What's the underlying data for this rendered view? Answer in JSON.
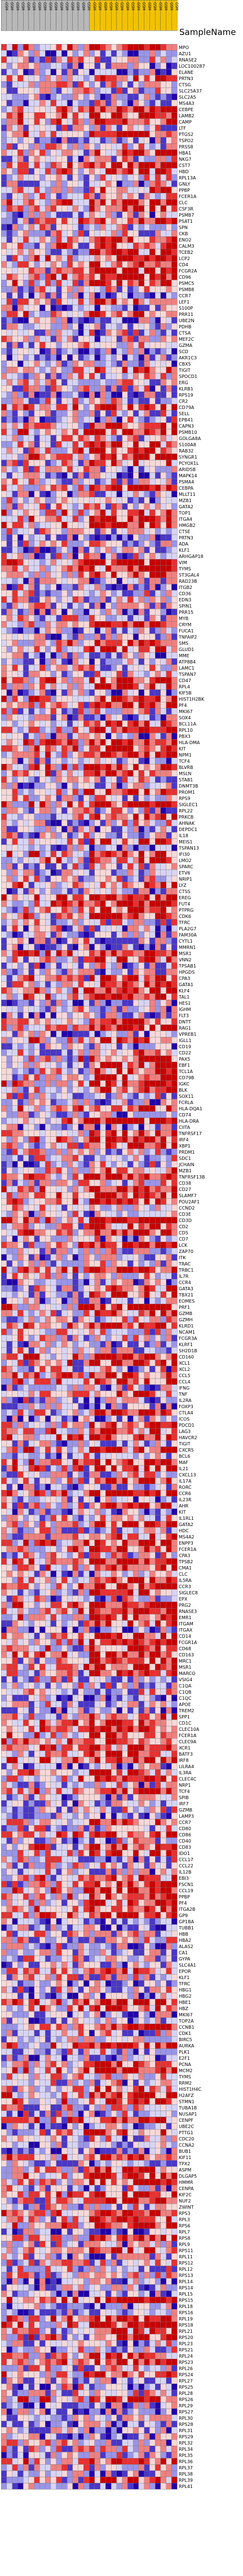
{
  "chart_data": {
    "type": "heatmap",
    "header": "SampleName",
    "groups": [
      {
        "name": "",
        "color": "#b8b8b8",
        "count": 16
      },
      {
        "name": "",
        "color": "#f2c200",
        "count": 16
      }
    ],
    "columns": [
      "GSM",
      "GSM",
      "GSM",
      "GSM",
      "GSM",
      "GSM",
      "GSM",
      "GSM",
      "GSM",
      "GSM",
      "GSM",
      "GSM",
      "GSM",
      "GSM",
      "GSM",
      "GSM",
      "GSM",
      "GSM",
      "GSM",
      "GSM",
      "GSM",
      "GSM",
      "GSM",
      "GSM",
      "GSM",
      "GSM",
      "GSM",
      "GSM",
      "GSM",
      "GSM",
      "GSM",
      "GSM"
    ],
    "rows": [
      "MPO",
      "AZU1",
      "RNASE2",
      "LOC100287",
      "ELANE",
      "PRTN3",
      "CTSG",
      "SLC25A37",
      "SLC2A5",
      "MS4A3",
      "CEBPE",
      "LAMB2",
      "CAMP",
      "LTF",
      "PTGS2",
      "TSPO2",
      "PRSS8",
      "HBA1",
      "NKG7",
      "CST7",
      "HBD",
      "RPL13A",
      "GNLY",
      "PPBP",
      "FCER1A",
      "CLC",
      "CSF3R",
      "PSMB7",
      "PSAT1",
      "SPN",
      "CKB",
      "ENO2",
      "CALM3",
      "TCEB2",
      "LCP2",
      "CD4",
      "FCGR2A",
      "CD96",
      "PSMC5",
      "PSMB8",
      "CCR7",
      "LEF1",
      "S100P",
      "PRR11",
      "UBE2N",
      "PDHB",
      "CTSA",
      "MEF2C",
      "GZMA",
      "SCD",
      "AKR1C3",
      "CBX5",
      "TIGIT",
      "SPOCD1",
      "ERG",
      "KLRB1",
      "RPS19",
      "CR2",
      "CD79A",
      "SELL",
      "EPB41",
      "CAPN3",
      "PSMB10",
      "GOLGA8A",
      "S100A8",
      "RAB32",
      "SYNGR1",
      "PCYOX1L",
      "ARID5B",
      "MAPK14",
      "PSMA4",
      "CEBPA",
      "MLLT11",
      "MZB1",
      "GATA2",
      "TOP1",
      "ITGA4",
      "HMGB2",
      "CTSE",
      "PRTN3",
      "ADA",
      "KLF1",
      "ARHGAP18",
      "VIM",
      "TYMS",
      "ST3GAL4",
      "RAD23B",
      "ITGB2",
      "CD36",
      "EDN3",
      "SPIN1",
      "PRR15",
      "MYB",
      "CRYM",
      "FUCA1",
      "TNFAIP2",
      "SMS",
      "GLUD1",
      "MME",
      "ATP8B4",
      "LAMC1",
      "TSPAN7",
      "CD47",
      "RPL4",
      "KIF5B",
      "HIST1H2BK",
      "PF4",
      "MKI67",
      "SOX4",
      "BCL11A",
      "RPL10",
      "PBX3",
      "HLA-DMA",
      "KIT",
      "NPM1",
      "TCF4",
      "BLVRB",
      "MSLN",
      "STAB1",
      "DNMT3B",
      "PROM1",
      "RPS9",
      "SIGLEC1",
      "RPL22",
      "PRKCB",
      "AHNAK",
      "DEPDC1",
      "IL18",
      "MEIS1",
      "TSPAN13",
      "IFI30",
      "LMO2",
      "SPARC",
      "ETV6",
      "NRIP1",
      "LYZ",
      "CTSS",
      "EREG",
      "FUT4",
      "PTPRG",
      "CDK6",
      "TFRC",
      "PLA2G7",
      "FAM30A",
      "CYTL1",
      "MMRN1",
      "MSR1",
      "VNN2",
      "TPSAB1",
      "HPGDS",
      "CPA3",
      "GATA1",
      "KLF4",
      "TAL1",
      "HES1",
      "IGHM",
      "FLT3",
      "DNTT",
      "RAG1",
      "VPREB1",
      "IGLL1",
      "CD19",
      "CD22",
      "PAX5",
      "EBF1",
      "TCL1A",
      "CD79B",
      "IGKC",
      "BLK",
      "SOX11",
      "FCRLA",
      "HLA-DQA1",
      "CD74",
      "HLA-DRA",
      "CIITA",
      "TNFRSF17",
      "IRF4",
      "XBP1",
      "PRDM1",
      "SDC1",
      "JCHAIN",
      "MZB1",
      "TNFRSF13B",
      "CD38",
      "CD27",
      "SLAMF7",
      "POU2AF1",
      "CCND2",
      "CD3E",
      "CD3D",
      "CD2",
      "CD5",
      "CD7",
      "LCK",
      "ZAP70",
      "ITK",
      "TRAC",
      "TRBC1",
      "IL7R",
      "CCR4",
      "GATA3",
      "TBX21",
      "EOMES",
      "PRF1",
      "GZMB",
      "GZMH",
      "KLRD1",
      "NCAM1",
      "FCGR3A",
      "KLRF1",
      "SH2D1B",
      "CD160",
      "XCL1",
      "XCL2",
      "CCL5",
      "CCL4",
      "IFNG",
      "TNF",
      "IL2RA",
      "FOXP3",
      "CTLA4",
      "ICOS",
      "PDCD1",
      "LAG3",
      "HAVCR2",
      "TIGIT",
      "CXCR5",
      "BCL6",
      "MAF",
      "IL21",
      "CXCL13",
      "IL17A",
      "RORC",
      "CCR6",
      "IL23R",
      "AHR",
      "KIT",
      "IL1RL1",
      "GATA2",
      "HDC",
      "MS4A2",
      "ENPP3",
      "FCER1A",
      "CPA3",
      "TPSB2",
      "CMA1",
      "CLC",
      "IL5RA",
      "CCR3",
      "SIGLEC8",
      "EPX",
      "PRG2",
      "RNASE3",
      "EMR1",
      "ITGAM",
      "ITGAX",
      "CD14",
      "FCGR1A",
      "CD68",
      "CD163",
      "MRC1",
      "MSR1",
      "MARCO",
      "VSIG4",
      "C1QA",
      "C1QB",
      "C1QC",
      "APOE",
      "TREM2",
      "SPP1",
      "CD1C",
      "CLEC10A",
      "FCER1A",
      "CLEC9A",
      "XCR1",
      "BATF3",
      "IRF8",
      "LILRA4",
      "IL3RA",
      "CLEC4C",
      "NRP1",
      "TCF4",
      "SPIB",
      "IRF7",
      "GZMB",
      "LAMP3",
      "CCR7",
      "CD80",
      "CD86",
      "CD40",
      "CD83",
      "IDO1",
      "CCL17",
      "CCL22",
      "IL12B",
      "EBI3",
      "FSCN1",
      "CCL19",
      "PPBP",
      "PF4",
      "ITGA2B",
      "GP9",
      "GP1BA",
      "TUBB1",
      "HBB",
      "HBA2",
      "ALAS2",
      "CA1",
      "GYPA",
      "SLC4A1",
      "EPOR",
      "KLF1",
      "TFRC",
      "HBG1",
      "HBG2",
      "HBE1",
      "HBZ",
      "MKI67",
      "TOP2A",
      "CCNB1",
      "CDK1",
      "BIRC5",
      "AURKA",
      "PLK1",
      "E2F1",
      "PCNA",
      "MCM2",
      "TYMS",
      "RRM2",
      "HIST1H4C",
      "H2AFZ",
      "STMN1",
      "TUBA1B",
      "NUSAP1",
      "CENPF",
      "UBE2C",
      "PTTG1",
      "CDC20",
      "CCNA2",
      "BUB1",
      "KIF11",
      "TPX2",
      "ASPM",
      "DLGAP5",
      "HMMR",
      "CENPA",
      "KIF2C",
      "NUF2",
      "ZWINT",
      "RPS3",
      "RPL3",
      "RPS6",
      "RPL7",
      "RPS8",
      "RPL9",
      "RPS11",
      "RPL11",
      "RPS12",
      "RPL12",
      "RPS13",
      "RPL14",
      "RPS14",
      "RPL15",
      "RPS15",
      "RPL18",
      "RPS16",
      "RPL19",
      "RPS18",
      "RPL21",
      "RPS20",
      "RPL23",
      "RPS21",
      "RPL24",
      "RPS23",
      "RPL26",
      "RPS24",
      "RPL27",
      "RPS25",
      "RPL28",
      "RPS26",
      "RPL29",
      "RPS27",
      "RPL30",
      "RPS28",
      "RPL31",
      "RPS29",
      "RPL32",
      "RPL34",
      "RPL35",
      "RPL36",
      "RPL37",
      "RPL38",
      "RPL39",
      "RPL41"
    ],
    "scale": [
      "#2200aa",
      "#4a36c8",
      "#9a94e8",
      "#d8d4f4",
      "#f7d8d8",
      "#f08080",
      "#e83030",
      "#c80000"
    ],
    "seed": 20231
  }
}
